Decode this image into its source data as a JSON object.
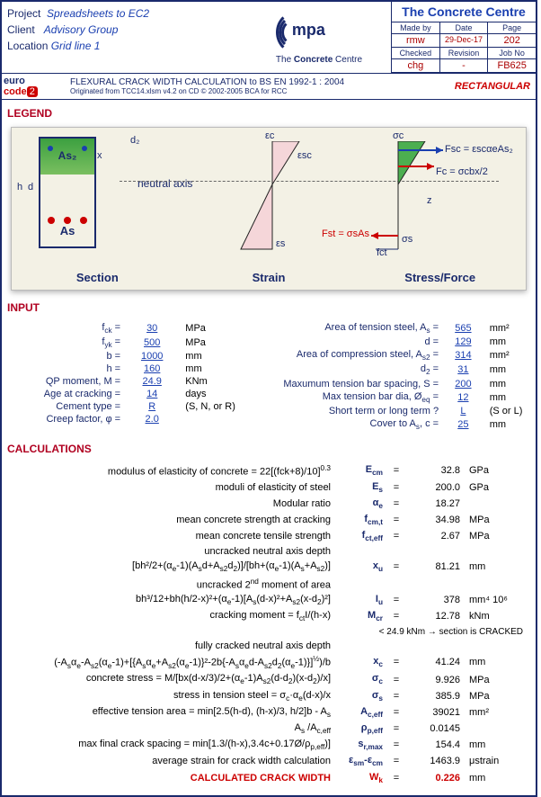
{
  "header": {
    "project_lbl": "Project",
    "project": "Spreadsheets to EC2",
    "client_lbl": "Client",
    "client": "Advisory Group",
    "location_lbl": "Location",
    "location": "Grid line 1",
    "centre": "The Concrete Centre",
    "logo_main": "mpa",
    "logo_sub": "The Concrete Centre",
    "madeby_lbl": "Made by",
    "madeby": "rmw",
    "date_lbl": "Date",
    "date": "29-Dec-17",
    "page_lbl": "Page",
    "page": "202",
    "checked_lbl": "Checked",
    "checked": "chg",
    "rev_lbl": "Revision",
    "rev": "-",
    "job_lbl": "Job No",
    "job": "FB625",
    "euro": "eurocode",
    "doc_title": "FLEXURAL CRACK WIDTH CALCULATION to BS EN 1992-1 : 2004",
    "orig": "Originated from TCC14.xlsm v4.2 on CD   © 2002-2005 BCA for RCC",
    "rect": "RECTANGULAR"
  },
  "legend": {
    "title": "LEGEND",
    "section": "Section",
    "strain": "Strain",
    "stress": "Stress/Force",
    "as2": "As₂",
    "as": "As",
    "neutral": "neutral axis",
    "d2": "d₂",
    "ec": "εc",
    "esc": "εsc",
    "es": "εs",
    "sc": "σc",
    "fsc": "Fsc = εscαeAs₂",
    "fc": "Fc = σcbx/2",
    "fst": "Fst = σsAs",
    "ss": "σs",
    "fct": "fct",
    "z": "z",
    "h": "h",
    "d": "d",
    "x": "x"
  },
  "input": {
    "title": "INPUT",
    "left": [
      {
        "l": "f<sub>ck</sub> =",
        "v": "30",
        "u": "MPa"
      },
      {
        "l": "f<sub>yk</sub> =",
        "v": "500",
        "u": "MPa"
      },
      {
        "l": "b =",
        "v": "1000",
        "u": "mm"
      },
      {
        "l": "h =",
        "v": "160",
        "u": "mm"
      },
      {
        "l": "QP moment, M =",
        "v": "24.9",
        "u": "KNm"
      },
      {
        "l": "Age at cracking =",
        "v": "14",
        "u": "days"
      },
      {
        "l": "Cement type =",
        "v": "R",
        "u": "(S, N, or R)"
      },
      {
        "l": "Creep factor, φ =",
        "v": "2.0",
        "u": ""
      }
    ],
    "right": [
      {
        "l": "Area of tension steel, A<sub>s</sub> =",
        "v": "565",
        "u": "mm²"
      },
      {
        "l": "d =",
        "v": "129",
        "u": "mm"
      },
      {
        "l": "Area of compression steel, A<sub>s2</sub> =",
        "v": "314",
        "u": "mm²"
      },
      {
        "l": "d<sub>2</sub> =",
        "v": "31",
        "u": "mm"
      },
      {
        "l": "Maxumum tension bar spacing, S =",
        "v": "200",
        "u": "mm"
      },
      {
        "l": "Max tension bar dia, Ø<sub>eq</sub> =",
        "v": "12",
        "u": "mm"
      },
      {
        "l": "Short term or long term ?",
        "v": "L",
        "u": "(S or L)"
      },
      {
        "l": "Cover to A<sub>s</sub>, c =",
        "v": "25",
        "u": "mm"
      }
    ]
  },
  "calc": {
    "title": "CALCULATIONS",
    "rows": [
      {
        "d": "modulus of elasticity of concrete = 22[(fck+8)/10]<sup>0.3</sup>",
        "s": "E<sub>cm</sub>",
        "v": "32.8",
        "u": "GPa"
      },
      {
        "d": "moduli of elasticity of steel",
        "s": "E<sub>s</sub>",
        "v": "200.0",
        "u": "GPa"
      },
      {
        "d": "Modular ratio",
        "s": "α<sub>e</sub>",
        "v": "18.27",
        "u": ""
      },
      {
        "d": "mean concrete strength at cracking",
        "s": "f<sub>cm,t</sub>",
        "v": "34.98",
        "u": "MPa"
      },
      {
        "d": "mean concrete tensile strength",
        "s": "f<sub>ct,eff</sub>",
        "v": "2.67",
        "u": "MPa"
      },
      {
        "d": "uncracked neutral axis depth",
        "s": "",
        "v": "",
        "u": ""
      },
      {
        "d": "[bh²/2+(α<sub>e</sub>-1)(A<sub>s</sub>d+A<sub>s2</sub>d<sub>2</sub>)]/[bh+(α<sub>e</sub>-1)(A<sub>s</sub>+A<sub>s2</sub>)]",
        "s": "x<sub>u</sub>",
        "v": "81.21",
        "u": "mm"
      },
      {
        "d": "uncracked 2<sup>nd</sup> moment of area",
        "s": "",
        "v": "",
        "u": ""
      },
      {
        "d": "bh³/12+bh(h/2-x)²+(α<sub>e</sub>-1)[A<sub>s</sub>(d-x)²+A<sub>s2</sub>(x-d<sub>2</sub>)²]",
        "s": "I<sub>u</sub>",
        "v": "378",
        "u": "mm⁴ 10⁶"
      },
      {
        "d": "cracking moment = f<sub>ct</sub>I/(h-x)",
        "s": "M<sub>cr</sub>",
        "v": "12.78",
        "u": "kNm"
      },
      {
        "d": "&lt; 24.9 kNm → section is CRACKED",
        "note": true
      },
      {
        "d": "fully cracked neutral axis depth",
        "s": "",
        "v": "",
        "u": ""
      },
      {
        "d": "(-A<sub>s</sub>α<sub>e</sub>-A<sub>s2</sub>(α<sub>e</sub>-1)+[{A<sub>s</sub>α<sub>e</sub>+A<sub>s2</sub>(α<sub>e</sub>-1)}²-2b{-A<sub>s</sub>α<sub>e</sub>d-A<sub>s2</sub>d<sub>2</sub>(α<sub>e</sub>-1)}]<sup>½</sup>)/b",
        "s": "x<sub>c</sub>",
        "v": "41.24",
        "u": "mm"
      },
      {
        "d": "concrete stress = M/[bx(d-x/3)/2+(α<sub>e</sub>-1)A<sub>s2</sub>(d-d<sub>2</sub>)(x-d<sub>2</sub>)/x]",
        "s": "σ<sub>c</sub>",
        "v": "9.926",
        "u": "MPa"
      },
      {
        "d": "stress in tension steel = σ<sub>c</sub>·α<sub>e</sub>(d-x)/x",
        "s": "σ<sub>s</sub>",
        "v": "385.9",
        "u": "MPa"
      },
      {
        "d": "effective tension area = min[2.5(h-d), (h-x)/3, h/2]b - A<sub>s</sub>",
        "s": "A<sub>c,eff</sub>",
        "v": "39021",
        "u": "mm²"
      },
      {
        "d": "A<sub>s</sub> /A<sub>c,eff</sub>",
        "s": "ρ<sub>p,eff</sub>",
        "v": "0.0145",
        "u": ""
      },
      {
        "d": "max final crack spacing = min[1.3/(h-x),3.4c+0.17Ø/ρ<sub>p,eff</sub>)]",
        "s": "s<sub>r,max</sub>",
        "v": "154.4",
        "u": "mm"
      },
      {
        "d": "average strain for crack width calculation",
        "s": "ε<sub>sm</sub>-ε<sub>cm</sub>",
        "v": "1463.9",
        "u": "μstrain"
      },
      {
        "d": "CALCULATED CRACK WIDTH",
        "s": "W<sub>k</sub>",
        "v": "0.226",
        "u": "mm",
        "crack": true
      }
    ]
  }
}
